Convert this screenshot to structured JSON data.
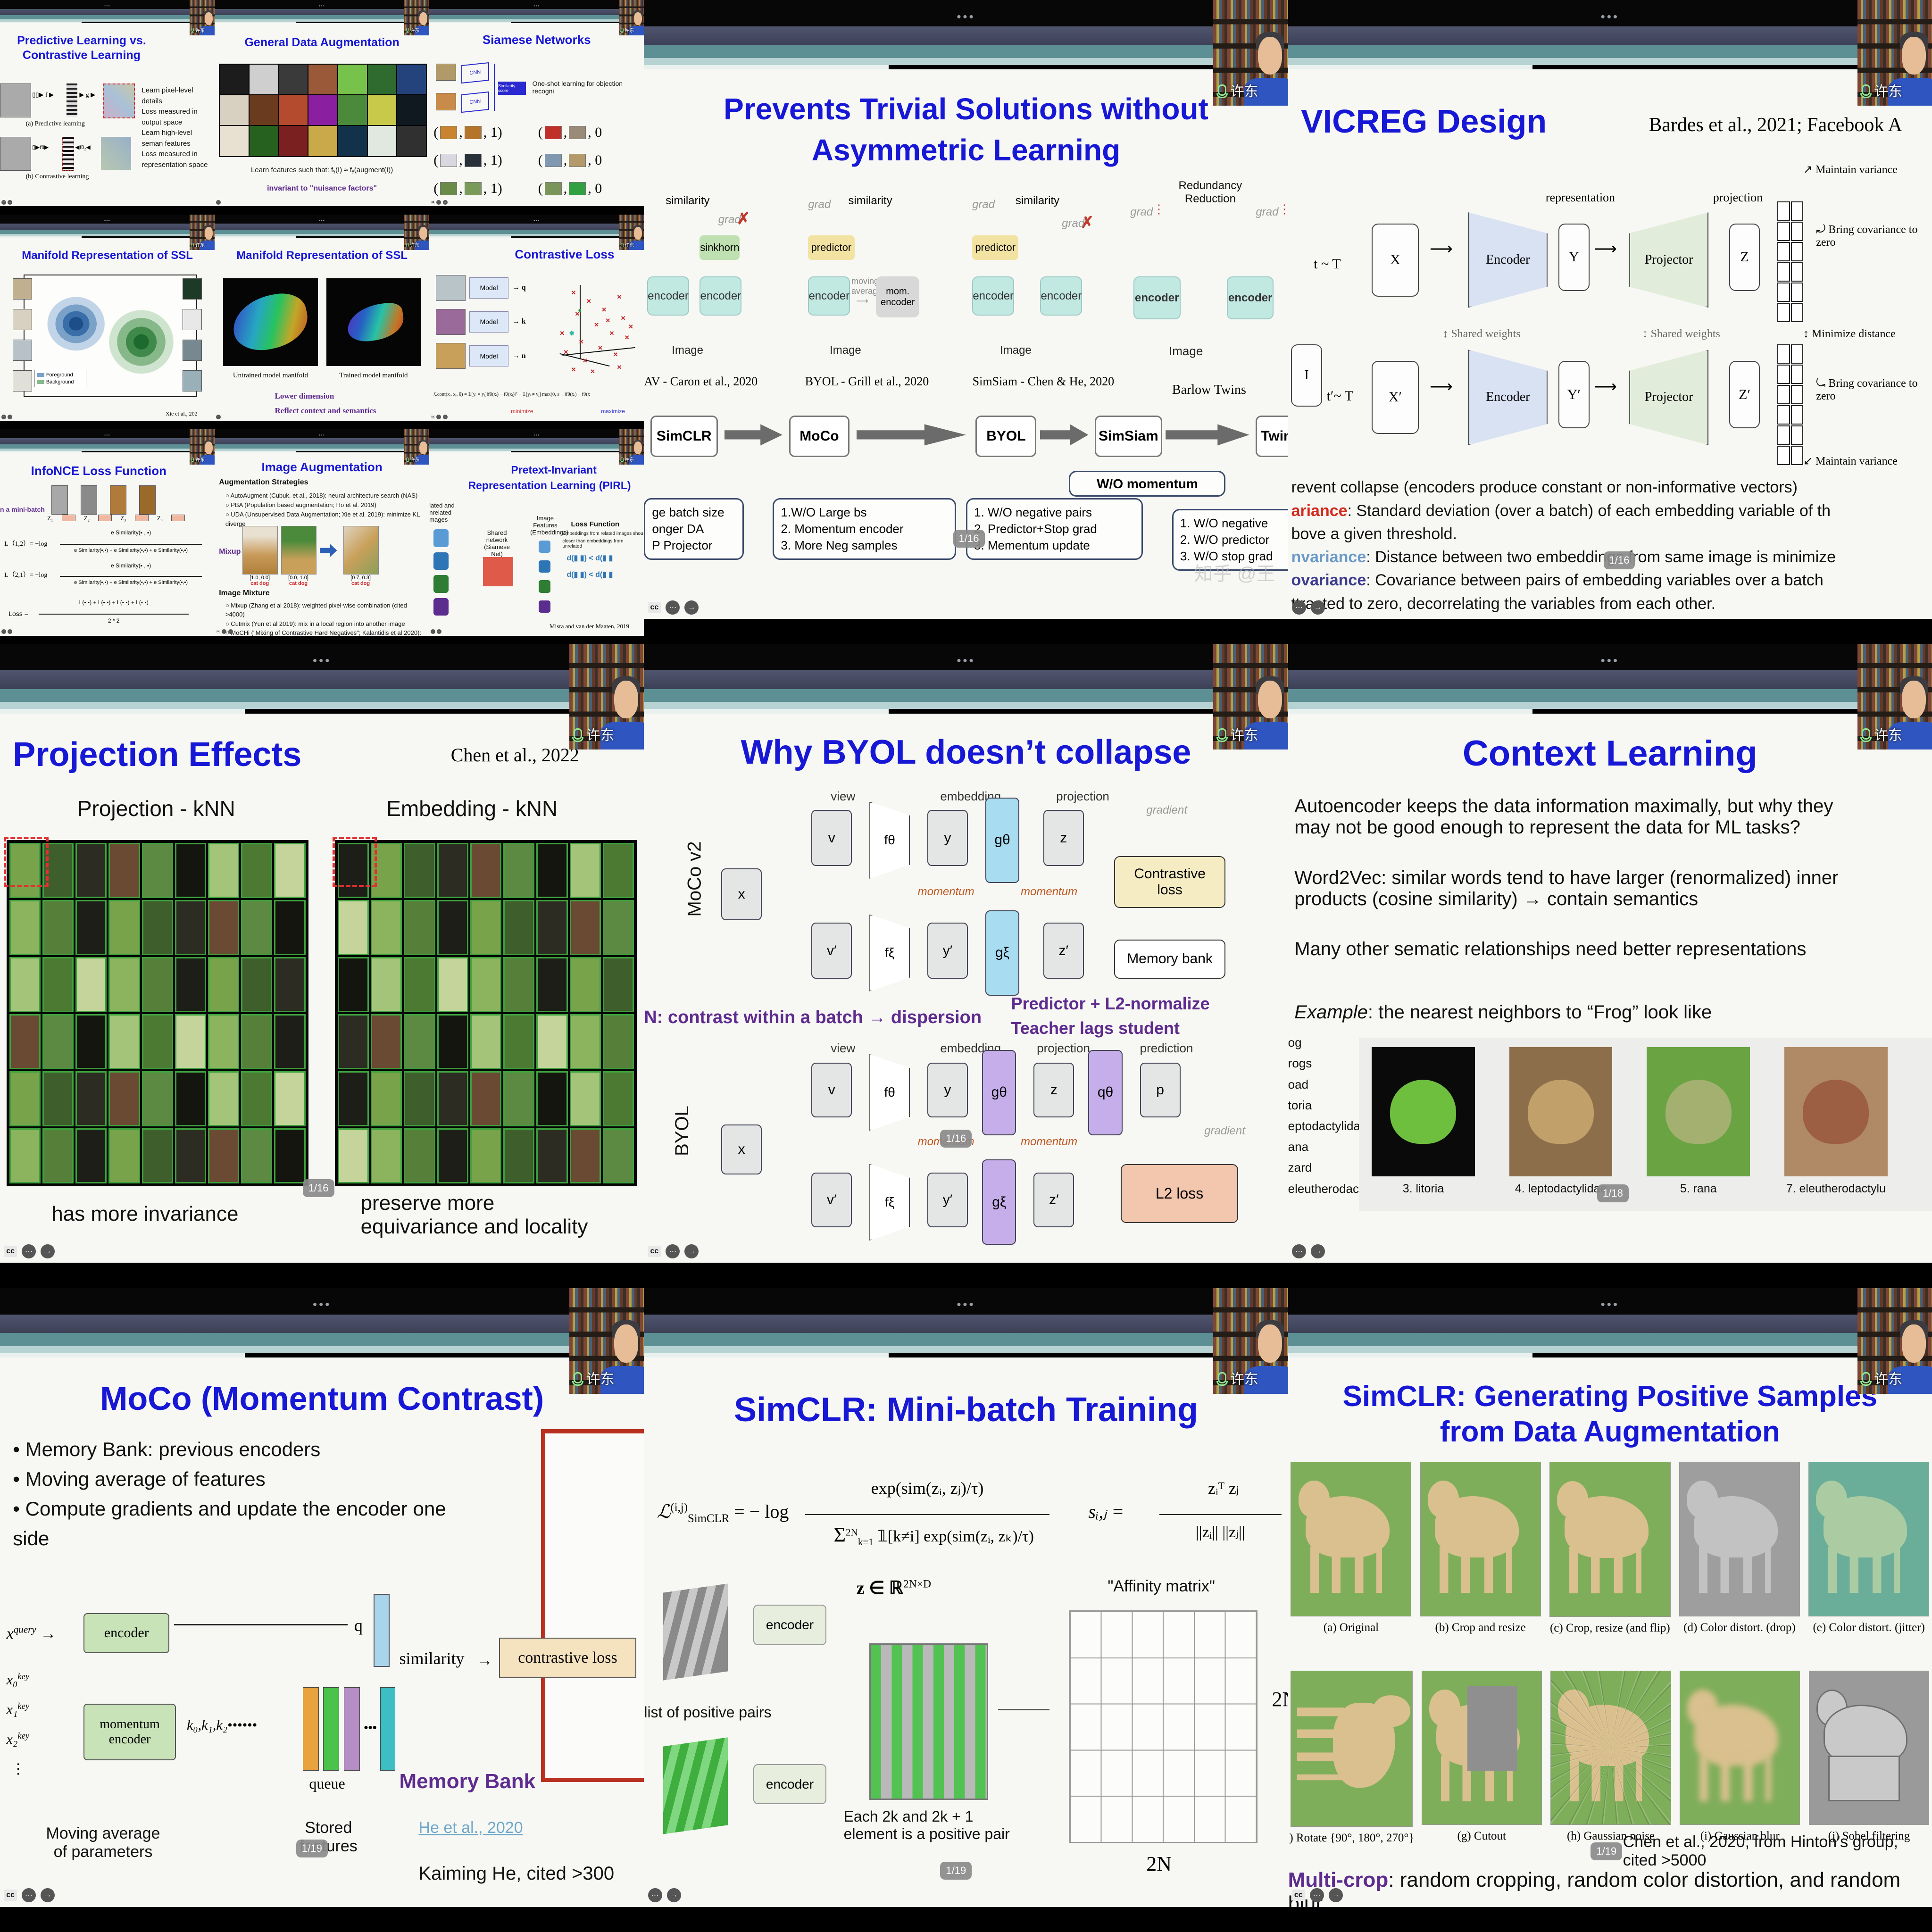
{
  "chrome": {
    "dots": "•••",
    "webcam_name": "许东",
    "cc": "cc",
    "more": "•••",
    "next": "→"
  },
  "mini": {
    "pred": {
      "title1": "Predictive Learning vs.",
      "title2": "Contrastive Learning",
      "cap_a": "(a) Predictive learning",
      "cap_b": "(b) Contrastive learning",
      "v1": "v₁",
      "z": "z",
      "v2h": "v̂₂",
      "v2": "v₂",
      "f": "f",
      "g": "g",
      "fo": "fθ",
      "fo2": "fθ₂",
      "notes": [
        "Learn pixel-level details",
        "Loss measured in output space",
        "Learn high-level seman features",
        "Loss measured in representation space"
      ]
    },
    "aug": {
      "title": "General Data Augmentation",
      "formula": "Learn features such that:  fᵧ(I) ≈ fᵧ(augment(I))",
      "invariant": "invariant to \"nuisance factors\"",
      "palette": [
        "#1c1c1c",
        "#cfcfcf",
        "#3a3a3a",
        "#9a5a3a",
        "#77c24a",
        "#2f6b2f",
        "#24427c",
        "#d8d0c0",
        "#6b3b1f",
        "#b44a2e",
        "#8a20a0",
        "#4a8a3a",
        "#c8c84a",
        "#101820",
        "#e8e0d0",
        "#27611f",
        "#7a2020",
        "#caa94a",
        "#11324a",
        "#e0e8e0",
        "#303030"
      ]
    },
    "siamese": {
      "title": "Siamese Networks",
      "note": "One-shot learning for objection recogni",
      "cnn": "CNN",
      "score": "Similarity score",
      "pairs": [
        {
          "a": "#c8842e",
          "b": "#b4742a",
          "v": ", 1)"
        },
        {
          "a": "#c03028",
          "b": "#9a8a78",
          "v": ", 0"
        },
        {
          "a": "#d8d8e0",
          "b": "#28303a",
          "v": ", 1)"
        },
        {
          "a": "#8098b0",
          "b": "#b49a6a",
          "v": ", 0"
        },
        {
          "a": "#6a8a4a",
          "b": "#7a9a5a",
          "v": ", 1)"
        },
        {
          "a": "#7a945a",
          "b": "#30a040",
          "v": ", 0"
        }
      ]
    },
    "manifold1": {
      "title": "Manifold Representation of SSL",
      "legend1": "Foreground",
      "legend2": "Background",
      "cite": "Xie et al., 202"
    },
    "manifold2": {
      "title": "Manifold Representation of SSL",
      "cap1": "Untrained model manifold",
      "cap2": "Trained model manifold",
      "note1": "Lower dimension",
      "note2": "Reflect context and semantics"
    },
    "closs": {
      "title": "Contrastive Loss",
      "model": "Model",
      "outs": [
        "q",
        "k",
        "n"
      ],
      "thumbs": [
        "#b9c4c9",
        "#9a6a9a",
        "#c9a05a"
      ],
      "formula": "ℒcont(xᵢ, xⱼ, θ) = 𝟙[yᵢ = yⱼ]‖fθ(xᵢ) − fθ(xⱼ)‖² + 𝟙[yᵢ ≠ yⱼ] max(0, ε − ‖fθ(xᵢ) − fθ(x",
      "minimize": "minimize",
      "maximize": "maximize",
      "scatter": [
        [
          64,
          14
        ],
        [
          72,
          22
        ],
        [
          80,
          30
        ],
        [
          88,
          18
        ],
        [
          90,
          38
        ],
        [
          76,
          44
        ],
        [
          84,
          52
        ],
        [
          92,
          56
        ],
        [
          68,
          60
        ],
        [
          78,
          66
        ],
        [
          86,
          72
        ],
        [
          70,
          78
        ],
        [
          60,
          70
        ],
        [
          64,
          86
        ],
        [
          74,
          88
        ],
        [
          88,
          84
        ],
        [
          58,
          52
        ],
        [
          94,
          46
        ],
        [
          82,
          40
        ],
        [
          66,
          34
        ]
      ]
    },
    "infonce": {
      "title": "InfoNCE Loss Function",
      "batch": "n a mini-batch",
      "zs": [
        "Z₁",
        "Z₂",
        "Z₃",
        "Z₄"
      ],
      "l12": "L（1,2）= −log",
      "l21": "L（2,1）= −log",
      "e": "e",
      "sim1": "Similarity(▪ , ▪)",
      "sim3": "e Similarity(▪,▪)  +  e Similarity(▪,▪)  +  e Similarity(▪,▪)",
      "loss_lhs": "Loss =",
      "loss_num": "L(▪ ▪) + L(▪ ▪) + L(▪ ▪) + L(▪ ▪)",
      "loss_den": "2 * 2"
    },
    "imgaug": {
      "title": "Image Augmentation",
      "h1": "Augmentation Strategies",
      "bullets1": [
        "AutoAugment (Cubuk, et al., 2018): neural architecture search (NAS)",
        "PBA (Population based augmentation; Ho et al. 2019)",
        "UDA (Unsupervised Data Augmentation; Xie et al. 2019): minimize KL diverge"
      ],
      "mixup": "Mixup",
      "lbl1": "[1.0, 0.0]",
      "lbl2": "[0.0, 1.0]",
      "lbl3": "[0.7, 0.3]",
      "catdog": "cat dog",
      "h2": "Image Mixture",
      "bullets2": [
        "Mixup (Zhang et al 2018): weighted pixel-wise combination (cited >4000)",
        "Cutmix (Yun et al 2019): mix in a local region into another image",
        "MoCHi (\"Mixing of Contrastive Hard Negatives\"; Kalantidis et al 2020): mixtur hard negative samples"
      ]
    },
    "pirl": {
      "title1": "Pretext-Invariant",
      "title2": "Representation Learning (PIRL)",
      "left1": "lated and",
      "left2": "nrelated",
      "left3": "mages",
      "shared1": "Shared",
      "shared2": "network",
      "shared3": "(Siamese  Net)",
      "feat1": "Image",
      "feat2": "Features",
      "feat3": "(Embeddings)",
      "lossh": "Loss Function",
      "losst1": "Embeddings from related images shou",
      "losst2": "closer than embeddings from unrelated",
      "dline1": "d(▮ ▮) < d(▮ ▮",
      "dline2": "d(▮ ▮) < d(▮ ▮",
      "cite": "Misra and van der Maaten, 2019",
      "colors": [
        "#5b9bd5",
        "#2e75b6",
        "#2f7d32",
        "#5b2d8e"
      ]
    }
  },
  "prevents": {
    "title1": "Prevents Trivial Solutions without",
    "title2": "Asymmetric  Learning",
    "similarity": "similarity",
    "grad": "grad",
    "sinkhorn": "sinkhorn",
    "predictor": "predictor",
    "moving1": "moving",
    "moving2": "average",
    "mom_encoder": "mom. encoder",
    "encoder": "encoder",
    "image": "Image",
    "redund1": "Redundancy",
    "redund2": "Reduction",
    "caps": [
      "AV - Caron et al., 2020",
      "BYOL - Grill et al., 2020",
      "SimSiam - Chen & He, 2020",
      "Barlow Twins"
    ],
    "flow": [
      "SimCLR",
      "MoCo",
      "BYOL",
      "SimSiam",
      "Twin"
    ],
    "wo_momentum": "W/O momentum",
    "callout1": [
      "ge batch size",
      "onger DA",
      "P Projector"
    ],
    "callout2": [
      "1.W/O Large bs",
      "2. Momentum encoder",
      "3. More Neg samples"
    ],
    "callout3": [
      "1.  W/O negative pairs",
      "2.  Predictor+Stop grad",
      "3.  Mementum update"
    ],
    "callout4": [
      "1.  W/O negative",
      "2.  W/O predictor",
      "3.  W/O stop grad"
    ],
    "page": "1/16",
    "watermark": "知乎 @王"
  },
  "vicreg": {
    "title": "VICREG Design",
    "cite": "Bardes et al., 2021; Facebook A",
    "t": "t ~ T",
    "tp": "t′~ T",
    "x": "X",
    "xp": "X′",
    "i": "I",
    "encoder": "Encoder",
    "projector": "Projector",
    "y": "Y",
    "yp": "Y′",
    "z": "Z",
    "zp": "Z′",
    "representation": "representation",
    "projection": "projection",
    "shared": "Shared weights",
    "maintain": "Maintain variance",
    "bring": "Bring covariance  to zero",
    "mindist": "Minimize distance",
    "lines": [
      {
        "lead": "",
        "color": "#111",
        "text": "revent collapse (encoders produce constant or non-informative vectors)"
      },
      {
        "lead": "ariance",
        "color": "#d42a1e",
        "text": ": Standard deviation (over a batch) of each embedding variable of th"
      },
      {
        "lead": "",
        "color": "#111",
        "text": "bove a given threshold."
      },
      {
        "lead": "nvariance",
        "color": "#6b9ac8",
        "text": ": Distance between two embeddings from same image is minimize"
      },
      {
        "lead": "ovariance",
        "color": "#3c3c8e",
        "text": ": Covariance between pairs of embedding variables over a batch"
      },
      {
        "lead": "",
        "color": "#111",
        "text": "ttracted to zero, decorrelating the variables from each other."
      }
    ]
  },
  "byol": {
    "title": "Why BYOL doesn’t collapse",
    "moco_lbl": "MoCo v2",
    "byol_lbl": "BYOL",
    "view": "view",
    "embedding": "embedding",
    "projection": "projection",
    "prediction": "prediction",
    "gradient": "gradient",
    "momentum": "momentum",
    "x": "x",
    "v": "v",
    "vp": "v′",
    "f1": "fθ",
    "f2": "fξ",
    "y": "y",
    "yp": "y′",
    "g1": "gθ",
    "g2": "gξ",
    "z": "z",
    "zp": "z′",
    "q": "qθ",
    "p": "p",
    "closs1": "Contrastive",
    "closs2": "loss",
    "membank": "Memory bank",
    "l2": "L2 loss",
    "note1": "N: contrast within a batch → dispersion",
    "note2": "Predictor + L2-normalize",
    "note3": "Teacher lags student",
    "page": "1/16"
  },
  "context": {
    "title": "Context Learning",
    "p1a": "Autoencoder keeps the data information maximally, but why they",
    "p1b": "may not be good enough to represent the data for ML tasks?",
    "p2a": "Word2Vec: similar words tend to have larger (renormalized) inner",
    "p2b": "products (cosine similarity) → contain semantics",
    "p3": "Many other sematic relationships need better representations",
    "example_lead": "Example",
    "example_rest": ": the nearest neighbors to “Frog” look like",
    "words": [
      "og",
      "rogs",
      "oad",
      "toria",
      "eptodactylidae",
      "ana",
      "zard",
      "eleutherodactylus"
    ],
    "frogs": [
      {
        "caption": "3. litoria",
        "bg": "#0a0a0a",
        "body": "#6fbf3f"
      },
      {
        "caption": "4. leptodactylidae",
        "bg": "#8d6e4a",
        "body": "#c2a06a"
      },
      {
        "caption": "5. rana",
        "bg": "#6aa342",
        "body": "#a3b070"
      },
      {
        "caption": "7. eleutherodactylu",
        "bg": "#b08a66",
        "body": "#9c5f43"
      }
    ],
    "page": "1/18"
  },
  "moco": {
    "title": "MoCo (Momentum Contrast)",
    "bullets": [
      "Memory Bank: previous encoders",
      "Moving average of features",
      "Compute gradients and update the encoder one side"
    ],
    "x": "x",
    "query": "query",
    "key": "key",
    "keys": [
      "x₀",
      "x₁",
      "x₂"
    ],
    "encoder": "encoder",
    "mom1": "momentum",
    "mom2": "encoder",
    "q": "q",
    "ks": "k₀,k₁,k₂",
    "kdots": "••••••",
    "queue": "queue",
    "membank": "Memory Bank",
    "similarity": "similarity",
    "closs": "contrastive loss",
    "cap1a": "Moving average",
    "cap1b": "of parameters",
    "cap2a": "Stored",
    "cap2b": "features",
    "cite": "He et al., 2020",
    "cite2": "Kaiming He, cited >300",
    "mem_colors": [
      "#7dc24b",
      "#2e7d32",
      "#a964d8",
      "#4a2d7d",
      "#2e5fb6",
      "#5b9bf5"
    ],
    "queue_colors": [
      "#e8a33d",
      "#4bc24b",
      "#b48ec4"
    ],
    "queue_last": "#3dbdc4",
    "page": "1/19"
  },
  "simclr_batch": {
    "title": "SimCLR: Mini-batch Training",
    "lhs": "ℒ",
    "lhs_sup": "(i,j)",
    "lhs_sub": "SimCLR",
    "eq": "= − log",
    "num": "exp(sim(zᵢ, zⱼ)/τ)",
    "den_sig": "Σ",
    "den_sup": "2N",
    "den_sub": "k=1",
    "den_rest": "𝟙[k≠i] exp(sim(zᵢ, zₖ)/τ)",
    "s_lhs": "sᵢ,ⱼ  =",
    "s_num": "zᵢᵀ zⱼ",
    "s_den": "||zᵢ|| ||zⱼ||",
    "affinity": "\"Affinity matrix\"",
    "list_lbl": "list of positive pairs",
    "encoder": "encoder",
    "zdef": "z ∈ ℝ",
    "zdef_sup": "2N×D",
    "pair1": "Each 2k and 2k + 1",
    "pair2": "element is a positive pair",
    "n_right": "2N",
    "n_bottom": "2N",
    "page": "1/19"
  },
  "simclr_aug": {
    "title1": "SimCLR: Generating Positive Samples",
    "title2": "from Data  Augmentation",
    "rows": [
      [
        {
          "cap": "(a) Original",
          "variant": ""
        },
        {
          "cap": "(b) Crop and resize",
          "variant": ""
        },
        {
          "cap": "(c) Crop, resize (and flip)",
          "variant": ""
        },
        {
          "cap": "(d) Color distort. (drop)",
          "variant": "v-gray"
        },
        {
          "cap": "(e) Color distort. (jitter)",
          "variant": "v-jitter"
        }
      ],
      [
        {
          "cap": ") Rotate {90°, 180°, 270°}",
          "variant": "v-rot"
        },
        {
          "cap": "(g) Cutout",
          "variant": "v-cut"
        },
        {
          "cap": "(h) Gaussian noise",
          "variant": "v-noise"
        },
        {
          "cap": "(i) Gaussian blur",
          "variant": "v-blur"
        },
        {
          "cap": "(j) Sobel filtering",
          "variant": "v-sobel"
        }
      ]
    ],
    "cite": "Chen et al., 2020; from Hinton’s group, cited >5000",
    "multi_lead": "Multi-crop",
    "multi_rest": ": random cropping, random color  distortion, and random blur",
    "page": "1/19"
  },
  "projection": {
    "title": "Projection Effects",
    "cite": "Chen et al., 2022",
    "left_lbl": "Projection - kNN",
    "right_lbl": "Embedding - kNN",
    "cap_left": "has more invariance",
    "cap_right1": "preserve more",
    "cap_right2": "equivariance and locality",
    "page": "1/16",
    "palette": [
      "#79a34a",
      "#4c7a33",
      "#2c2c22",
      "#8cb45f",
      "#5d8a42",
      "#1e1e18",
      "#a4c47a",
      "#3e5e2c",
      "#c4d49a",
      "#6b4a33",
      "#567f3a",
      "#151510"
    ]
  }
}
